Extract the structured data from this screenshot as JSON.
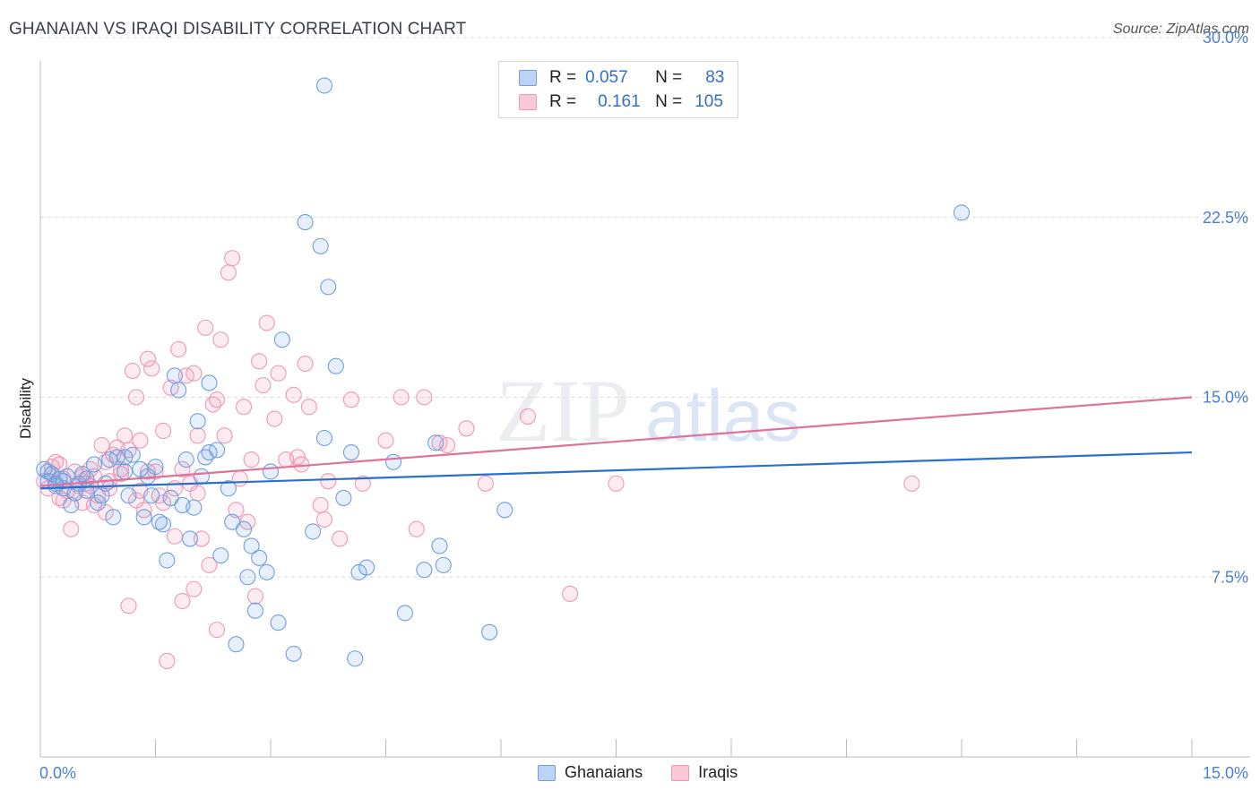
{
  "title": "GHANAIAN VS IRAQI DISABILITY CORRELATION CHART",
  "source": "Source: ZipAtlas.com",
  "watermark": {
    "zip": "ZIP",
    "atlas": "atlas"
  },
  "colors": {
    "ghanaians_fill": "rgba(120,165,230,0.18)",
    "ghanaians_stroke": "#6f9fe0",
    "ghanaians_line": "#2a6fcf",
    "iraqis_fill": "rgba(240,150,180,0.18)",
    "iraqis_stroke": "#ee98b6",
    "iraqis_line": "#e0729a",
    "tick_label": "#4a7fd0"
  },
  "legend": {
    "rows": [
      {
        "r_label": "R =",
        "r_value": "0.057",
        "n_label": "N =",
        "n_value": "83"
      },
      {
        "r_label": "R =",
        "r_value": "0.161",
        "n_label": "N =",
        "n_value": "105"
      }
    ],
    "bottom": [
      "Ghanaians",
      "Iraqis"
    ]
  },
  "chart_data": {
    "type": "scatter",
    "xlabel": "",
    "ylabel": "Disability",
    "xlim": [
      0,
      15
    ],
    "ylim": [
      0,
      30
    ],
    "x_tick_labels": [
      "0.0%",
      "15.0%"
    ],
    "y_tick_labels": [
      "7.5%",
      "15.0%",
      "22.5%",
      "30.0%"
    ],
    "y_ticks": [
      7.5,
      15.0,
      22.5,
      30.0
    ],
    "grid": "horizontal dashed",
    "series": [
      {
        "name": "Ghanaians",
        "trend": [
          [
            0,
            11.2
          ],
          [
            15,
            12.7
          ]
        ],
        "points": [
          [
            0.05,
            12.0
          ],
          [
            0.1,
            11.5
          ],
          [
            0.15,
            11.8
          ],
          [
            0.2,
            11.3
          ],
          [
            0.25,
            11.6
          ],
          [
            0.3,
            11.2
          ],
          [
            0.35,
            11.7
          ],
          [
            0.4,
            10.5
          ],
          [
            0.45,
            11.0
          ],
          [
            0.5,
            11.4
          ],
          [
            0.55,
            11.8
          ],
          [
            0.6,
            11.1
          ],
          [
            0.7,
            12.2
          ],
          [
            0.75,
            10.6
          ],
          [
            0.8,
            10.9
          ],
          [
            0.85,
            11.4
          ],
          [
            0.9,
            12.4
          ],
          [
            0.95,
            10.0
          ],
          [
            1.0,
            12.5
          ],
          [
            1.1,
            11.9
          ],
          [
            1.15,
            10.9
          ],
          [
            1.2,
            12.6
          ],
          [
            1.3,
            12.0
          ],
          [
            1.35,
            10.0
          ],
          [
            1.4,
            11.7
          ],
          [
            1.45,
            10.9
          ],
          [
            1.55,
            9.8
          ],
          [
            1.6,
            9.7
          ],
          [
            1.65,
            8.2
          ],
          [
            1.7,
            10.8
          ],
          [
            1.75,
            15.9
          ],
          [
            1.8,
            15.3
          ],
          [
            1.85,
            10.5
          ],
          [
            1.9,
            12.4
          ],
          [
            1.95,
            9.1
          ],
          [
            2.0,
            10.4
          ],
          [
            2.05,
            14.0
          ],
          [
            2.1,
            11.7
          ],
          [
            2.15,
            12.5
          ],
          [
            2.2,
            15.6
          ],
          [
            2.3,
            12.8
          ],
          [
            2.35,
            8.4
          ],
          [
            2.45,
            11.2
          ],
          [
            2.5,
            9.8
          ],
          [
            2.55,
            4.7
          ],
          [
            2.65,
            9.5
          ],
          [
            2.7,
            7.5
          ],
          [
            2.75,
            8.8
          ],
          [
            2.8,
            6.1
          ],
          [
            2.85,
            8.3
          ],
          [
            2.95,
            7.7
          ],
          [
            3.0,
            11.9
          ],
          [
            3.1,
            5.6
          ],
          [
            3.15,
            17.4
          ],
          [
            3.3,
            4.3
          ],
          [
            3.45,
            22.3
          ],
          [
            3.55,
            9.4
          ],
          [
            3.65,
            21.3
          ],
          [
            3.7,
            13.3
          ],
          [
            3.75,
            19.6
          ],
          [
            3.85,
            16.3
          ],
          [
            3.95,
            10.8
          ],
          [
            4.05,
            12.7
          ],
          [
            4.1,
            4.1
          ],
          [
            4.15,
            7.7
          ],
          [
            4.25,
            7.9
          ],
          [
            4.6,
            12.3
          ],
          [
            4.75,
            6.0
          ],
          [
            5.0,
            7.8
          ],
          [
            5.15,
            13.1
          ],
          [
            5.2,
            8.8
          ],
          [
            5.25,
            8.0
          ],
          [
            5.85,
            5.2
          ],
          [
            6.05,
            10.3
          ],
          [
            3.7,
            28.0
          ],
          [
            12.0,
            22.7
          ],
          [
            0.1,
            11.9
          ],
          [
            0.2,
            11.4
          ],
          [
            1.1,
            12.5
          ],
          [
            0.6,
            11.6
          ],
          [
            1.5,
            12.1
          ],
          [
            2.2,
            12.7
          ],
          [
            0.3,
            11.5
          ]
        ]
      },
      {
        "name": "Iraqis",
        "trend": [
          [
            0,
            11.3
          ],
          [
            15,
            15.0
          ]
        ],
        "points": [
          [
            0.05,
            11.5
          ],
          [
            0.1,
            11.2
          ],
          [
            0.15,
            11.8
          ],
          [
            0.2,
            12.3
          ],
          [
            0.25,
            10.8
          ],
          [
            0.3,
            11.6
          ],
          [
            0.35,
            11.1
          ],
          [
            0.4,
            9.5
          ],
          [
            0.45,
            11.9
          ],
          [
            0.5,
            11.3
          ],
          [
            0.55,
            10.6
          ],
          [
            0.6,
            11.4
          ],
          [
            0.65,
            12.0
          ],
          [
            0.7,
            11.7
          ],
          [
            0.75,
            10.9
          ],
          [
            0.8,
            13.0
          ],
          [
            0.85,
            10.2
          ],
          [
            0.9,
            11.5
          ],
          [
            0.95,
            12.6
          ],
          [
            1.0,
            12.9
          ],
          [
            1.05,
            11.8
          ],
          [
            1.1,
            13.4
          ],
          [
            1.15,
            6.3
          ],
          [
            1.2,
            16.1
          ],
          [
            1.25,
            15.0
          ],
          [
            1.3,
            11.1
          ],
          [
            1.35,
            10.3
          ],
          [
            1.4,
            16.6
          ],
          [
            1.45,
            16.2
          ],
          [
            1.5,
            11.9
          ],
          [
            1.55,
            10.9
          ],
          [
            1.6,
            13.6
          ],
          [
            1.65,
            4.0
          ],
          [
            1.7,
            15.4
          ],
          [
            1.75,
            9.2
          ],
          [
            1.8,
            17.0
          ],
          [
            1.85,
            6.5
          ],
          [
            1.9,
            15.9
          ],
          [
            1.95,
            11.4
          ],
          [
            2.0,
            7.0
          ],
          [
            2.05,
            13.4
          ],
          [
            2.1,
            9.1
          ],
          [
            2.15,
            17.9
          ],
          [
            2.2,
            8.0
          ],
          [
            2.25,
            14.7
          ],
          [
            2.3,
            5.3
          ],
          [
            2.35,
            17.4
          ],
          [
            2.4,
            13.4
          ],
          [
            2.45,
            20.2
          ],
          [
            2.5,
            20.8
          ],
          [
            2.55,
            10.3
          ],
          [
            2.6,
            11.6
          ],
          [
            2.65,
            14.6
          ],
          [
            2.7,
            9.8
          ],
          [
            2.75,
            12.4
          ],
          [
            2.8,
            6.7
          ],
          [
            2.85,
            16.5
          ],
          [
            2.9,
            15.5
          ],
          [
            2.95,
            18.1
          ],
          [
            3.1,
            16.0
          ],
          [
            3.2,
            12.4
          ],
          [
            3.3,
            15.1
          ],
          [
            3.35,
            12.5
          ],
          [
            3.45,
            16.4
          ],
          [
            3.5,
            14.6
          ],
          [
            3.65,
            10.5
          ],
          [
            3.7,
            9.9
          ],
          [
            3.75,
            11.5
          ],
          [
            3.9,
            9.1
          ],
          [
            4.05,
            14.9
          ],
          [
            4.5,
            13.2
          ],
          [
            4.7,
            15.0
          ],
          [
            5.0,
            15.0
          ],
          [
            5.3,
            13.0
          ],
          [
            5.55,
            13.7
          ],
          [
            5.8,
            11.4
          ],
          [
            6.35,
            14.2
          ],
          [
            6.9,
            6.8
          ],
          [
            7.5,
            11.4
          ],
          [
            11.35,
            11.4
          ],
          [
            0.15,
            12.1
          ],
          [
            0.3,
            10.7
          ],
          [
            0.45,
            11.0
          ],
          [
            0.55,
            11.7
          ],
          [
            0.7,
            10.5
          ],
          [
            0.9,
            11.2
          ],
          [
            1.05,
            12.0
          ],
          [
            1.25,
            10.7
          ],
          [
            1.4,
            11.9
          ],
          [
            1.6,
            10.6
          ],
          [
            1.85,
            12.0
          ],
          [
            2.05,
            11.0
          ],
          [
            0.25,
            12.2
          ],
          [
            0.65,
            11.3
          ],
          [
            1.15,
            12.8
          ],
          [
            1.75,
            11.2
          ],
          [
            2.3,
            14.9
          ],
          [
            2.0,
            16.0
          ],
          [
            1.3,
            13.2
          ],
          [
            0.85,
            12.3
          ],
          [
            3.05,
            14.1
          ],
          [
            3.4,
            12.2
          ],
          [
            4.2,
            11.4
          ],
          [
            4.9,
            9.5
          ],
          [
            5.2,
            13.1
          ]
        ]
      }
    ]
  }
}
